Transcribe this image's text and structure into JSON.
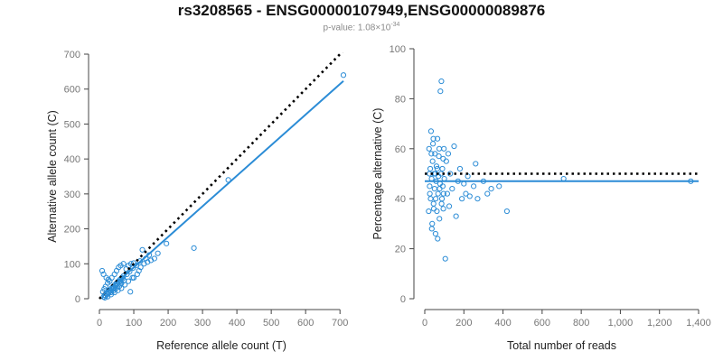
{
  "header": {
    "title": "rs3208565 - ENSG00000107949,ENSG00000089876",
    "subtitle_prefix": "p-value: 1.08×10",
    "subtitle_exp": "-34"
  },
  "colors": {
    "points": "#2b8cd6",
    "fit": "#2b8cd6",
    "reference": "#000000"
  },
  "chart_data": [
    {
      "type": "scatter",
      "xlabel": "Reference allele count (T)",
      "ylabel": "Alternative allele count (C)",
      "xlim": [
        0,
        710
      ],
      "ylim": [
        0,
        700
      ],
      "xticks": [
        0,
        100,
        200,
        300,
        400,
        500,
        600,
        700
      ],
      "yticks": [
        0,
        100,
        200,
        300,
        400,
        500,
        600,
        700
      ],
      "points": [
        [
          12,
          5
        ],
        [
          15,
          10
        ],
        [
          18,
          8
        ],
        [
          20,
          15
        ],
        [
          22,
          12
        ],
        [
          25,
          20
        ],
        [
          28,
          18
        ],
        [
          30,
          25
        ],
        [
          32,
          22
        ],
        [
          35,
          30
        ],
        [
          38,
          28
        ],
        [
          40,
          35
        ],
        [
          42,
          30
        ],
        [
          45,
          40
        ],
        [
          48,
          38
        ],
        [
          50,
          45
        ],
        [
          52,
          42
        ],
        [
          55,
          50
        ],
        [
          58,
          48
        ],
        [
          60,
          55
        ],
        [
          62,
          50
        ],
        [
          65,
          60
        ],
        [
          68,
          58
        ],
        [
          70,
          65
        ],
        [
          10,
          20
        ],
        [
          14,
          28
        ],
        [
          18,
          35
        ],
        [
          24,
          45
        ],
        [
          30,
          50
        ],
        [
          36,
          60
        ],
        [
          44,
          70
        ],
        [
          50,
          80
        ],
        [
          56,
          90
        ],
        [
          62,
          95
        ],
        [
          70,
          100
        ],
        [
          78,
          85
        ],
        [
          85,
          95
        ],
        [
          92,
          100
        ],
        [
          100,
          102
        ],
        [
          16,
          3
        ],
        [
          24,
          6
        ],
        [
          34,
          12
        ],
        [
          44,
          18
        ],
        [
          54,
          24
        ],
        [
          64,
          30
        ],
        [
          74,
          40
        ],
        [
          84,
          50
        ],
        [
          96,
          60
        ],
        [
          110,
          70
        ],
        [
          120,
          90
        ],
        [
          130,
          100
        ],
        [
          140,
          105
        ],
        [
          150,
          110
        ],
        [
          160,
          115
        ],
        [
          90,
          20
        ],
        [
          100,
          60
        ],
        [
          115,
          80
        ],
        [
          125,
          140
        ],
        [
          135,
          115
        ],
        [
          170,
          130
        ],
        [
          195,
          158
        ],
        [
          275,
          145
        ],
        [
          375,
          340
        ],
        [
          710,
          640
        ],
        [
          8,
          80
        ],
        [
          12,
          70
        ],
        [
          20,
          60
        ],
        [
          26,
          55
        ],
        [
          34,
          18
        ],
        [
          40,
          22
        ],
        [
          46,
          28
        ],
        [
          52,
          32
        ],
        [
          58,
          36
        ],
        [
          64,
          44
        ],
        [
          72,
          52
        ],
        [
          80,
          70
        ],
        [
          88,
          78
        ],
        [
          98,
          88
        ],
        [
          108,
          96
        ],
        [
          118,
          108
        ],
        [
          145,
          125
        ]
      ],
      "fit_line": {
        "slope": 0.875,
        "intercept": 2
      },
      "reference_line": {
        "slope": 1,
        "intercept": 0,
        "style": "dotted"
      }
    },
    {
      "type": "scatter",
      "xlabel": "Total number of reads",
      "ylabel": "Percentage alternative (C)",
      "xlim": [
        0,
        1400
      ],
      "ylim": [
        0,
        100
      ],
      "xticks": [
        0,
        200,
        400,
        600,
        800,
        1000,
        1200,
        1400
      ],
      "xtick_labels": [
        "0",
        "200",
        "400",
        "600",
        "800",
        "1,000",
        "1,200",
        "1,400"
      ],
      "yticks": [
        0,
        20,
        40,
        60,
        80,
        100
      ],
      "points": [
        [
          20,
          35
        ],
        [
          22,
          60
        ],
        [
          25,
          45
        ],
        [
          28,
          52
        ],
        [
          30,
          40
        ],
        [
          32,
          67
        ],
        [
          35,
          48
        ],
        [
          38,
          30
        ],
        [
          40,
          55
        ],
        [
          42,
          62
        ],
        [
          45,
          38
        ],
        [
          48,
          50
        ],
        [
          50,
          44
        ],
        [
          52,
          58
        ],
        [
          55,
          26
        ],
        [
          58,
          47
        ],
        [
          60,
          53
        ],
        [
          62,
          35
        ],
        [
          65,
          64
        ],
        [
          68,
          42
        ],
        [
          70,
          49
        ],
        [
          72,
          57
        ],
        [
          75,
          32
        ],
        [
          78,
          46
        ],
        [
          80,
          83
        ],
        [
          85,
          87
        ],
        [
          88,
          40
        ],
        [
          90,
          52
        ],
        [
          92,
          45
        ],
        [
          95,
          36
        ],
        [
          98,
          60
        ],
        [
          100,
          48
        ],
        [
          105,
          16
        ],
        [
          110,
          55
        ],
        [
          115,
          42
        ],
        [
          120,
          58
        ],
        [
          125,
          37
        ],
        [
          130,
          50
        ],
        [
          140,
          44
        ],
        [
          150,
          61
        ],
        [
          160,
          33
        ],
        [
          170,
          47
        ],
        [
          180,
          52
        ],
        [
          190,
          40
        ],
        [
          200,
          46
        ],
        [
          210,
          42
        ],
        [
          220,
          49
        ],
        [
          230,
          41
        ],
        [
          250,
          45
        ],
        [
          260,
          54
        ],
        [
          270,
          40
        ],
        [
          300,
          47
        ],
        [
          320,
          42
        ],
        [
          340,
          44
        ],
        [
          380,
          45
        ],
        [
          420,
          35
        ],
        [
          710,
          48
        ],
        [
          1360,
          47
        ],
        [
          24,
          50
        ],
        [
          26,
          42
        ],
        [
          34,
          58
        ],
        [
          36,
          28
        ],
        [
          44,
          64
        ],
        [
          46,
          36
        ],
        [
          54,
          50
        ],
        [
          56,
          40
        ],
        [
          64,
          52
        ],
        [
          66,
          24
        ],
        [
          74,
          60
        ],
        [
          76,
          44
        ],
        [
          84,
          50
        ],
        [
          86,
          38
        ],
        [
          94,
          56
        ],
        [
          96,
          42
        ]
      ],
      "fit_line": {
        "value": 47
      },
      "reference_line": {
        "value": 50,
        "style": "dotted"
      }
    }
  ]
}
